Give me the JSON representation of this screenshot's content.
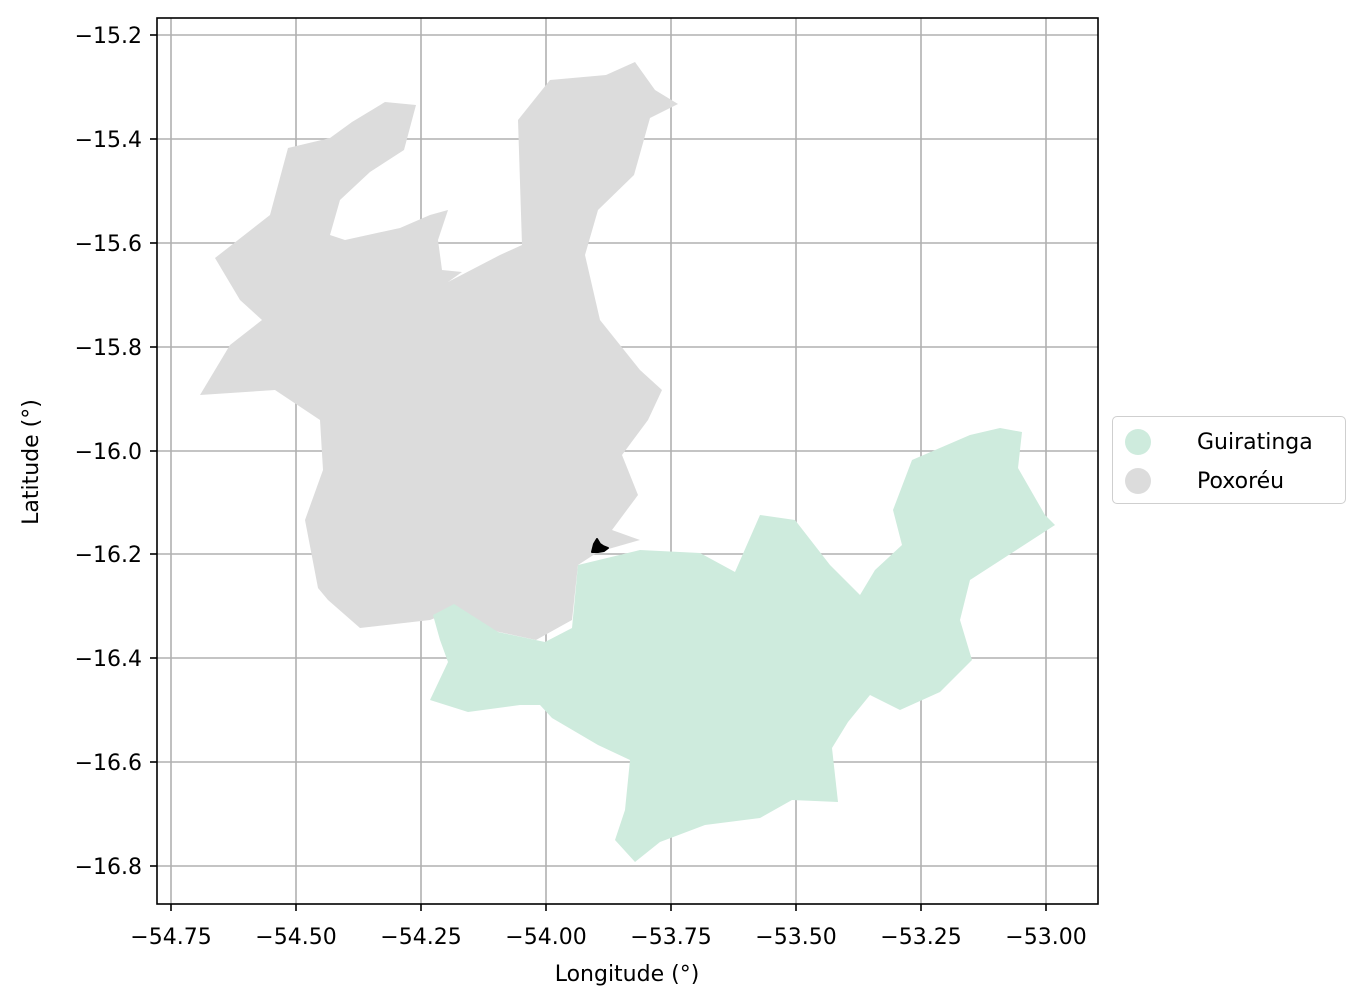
{
  "map": {
    "xlabel": "Longitude (°)",
    "ylabel": "Latitude (°)",
    "grid": true,
    "x_ticks": [
      "−54.75",
      "−54.50",
      "−54.25",
      "−54.00",
      "−53.75",
      "−53.50",
      "−53.25",
      "−53.00"
    ],
    "y_ticks": [
      "−15.2",
      "−15.4",
      "−15.6",
      "−15.8",
      "−16.0",
      "−16.2",
      "−16.4",
      "−16.6",
      "−16.8"
    ],
    "legend": {
      "placement": "right",
      "items": [
        {
          "label": "Guiratinga",
          "color": "#ceebdd"
        },
        {
          "label": "Poxoréu",
          "color": "#dcdcdc"
        }
      ]
    },
    "regions": [
      {
        "name": "Guiratinga",
        "color": "#ceebdd"
      },
      {
        "name": "Poxoréu",
        "color": "#dcdcdc"
      }
    ],
    "marker_color": "#000000"
  }
}
